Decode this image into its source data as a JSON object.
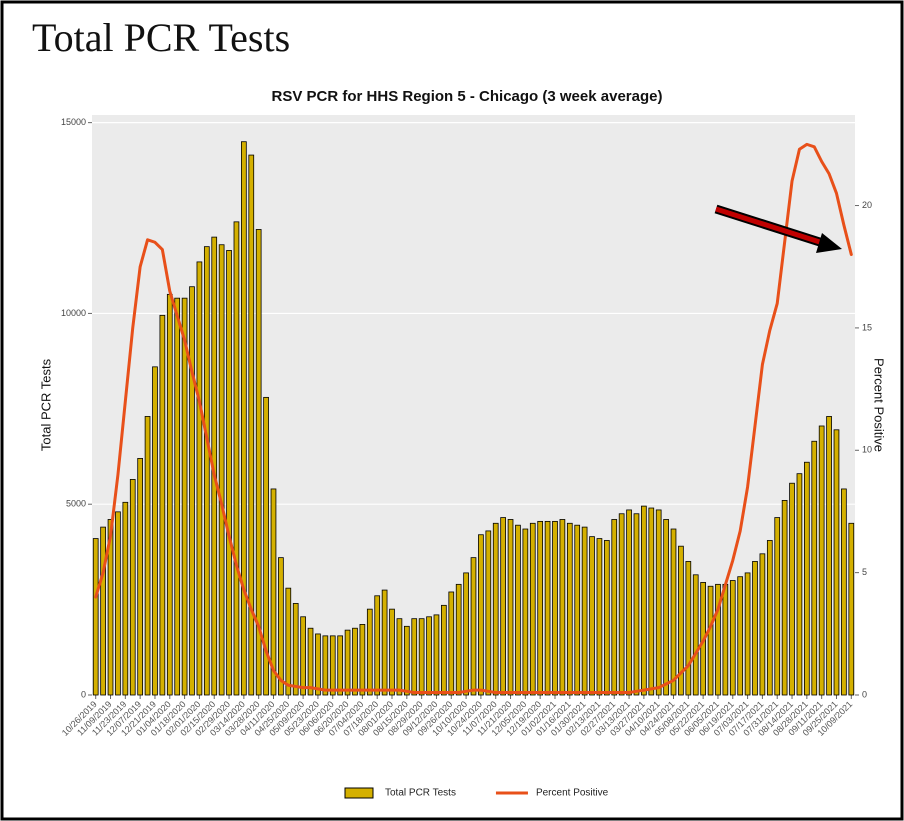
{
  "page_title": "Total PCR Tests",
  "chart_data": {
    "type": "bar_line",
    "title": "RSV PCR for HHS Region 5 - Chicago (3 week average)",
    "y_label": "Total PCR Tests",
    "y2_label": "Percent Positive",
    "categories": [
      "10/26/2019",
      null,
      "11/09/2019",
      null,
      "11/23/2019",
      null,
      "12/07/2019",
      null,
      "12/21/2019",
      null,
      "01/04/2020",
      null,
      "01/18/2020",
      null,
      "02/01/2020",
      null,
      "02/15/2020",
      null,
      "02/29/2020",
      null,
      "03/14/2020",
      null,
      "03/28/2020",
      null,
      "04/11/2020",
      null,
      "04/25/2020",
      null,
      "05/09/2020",
      null,
      "05/23/2020",
      null,
      "06/06/2020",
      null,
      "06/20/2020",
      null,
      "07/04/2020",
      null,
      "07/18/2020",
      null,
      "08/01/2020",
      null,
      "08/15/2020",
      null,
      "08/29/2020",
      null,
      "09/12/2020",
      null,
      "09/26/2020",
      null,
      "10/10/2020",
      null,
      "10/24/2020",
      null,
      "11/07/2020",
      null,
      "11/21/2020",
      null,
      "12/05/2020",
      null,
      "12/19/2020",
      null,
      "01/02/2021",
      null,
      "01/16/2021",
      null,
      "01/30/2021",
      null,
      "02/13/2021",
      null,
      "02/27/2021",
      null,
      "03/13/2021",
      null,
      "03/27/2021",
      null,
      "04/10/2021",
      null,
      "04/24/2021",
      null,
      "05/08/2021",
      null,
      "05/22/2021",
      null,
      "06/05/2021",
      null,
      "06/19/2021",
      null,
      "07/03/2021",
      null,
      "07/17/2021",
      null,
      "07/31/2021",
      null,
      "08/14/2021",
      null,
      "08/28/2021",
      null,
      "09/11/2021",
      null,
      "09/25/2021",
      null,
      "10/09/2021"
    ],
    "series": [
      {
        "name": "Total PCR Tests",
        "type": "bar",
        "color": "#d4b000",
        "values": [
          4100,
          4400,
          4600,
          4800,
          5050,
          5650,
          6200,
          7300,
          8600,
          9950,
          10500,
          10400,
          10400,
          10700,
          11350,
          11750,
          12000,
          11800,
          11650,
          12400,
          14500,
          14150,
          12200,
          7800,
          5400,
          3600,
          2800,
          2400,
          2050,
          1750,
          1600,
          1550,
          1550,
          1550,
          1700,
          1750,
          1850,
          2250,
          2600,
          2750,
          2250,
          2000,
          1800,
          2000,
          2000,
          2050,
          2100,
          2350,
          2700,
          2900,
          3200,
          3600,
          4200,
          4300,
          4500,
          4650,
          4600,
          4450,
          4350,
          4500,
          4550,
          4550,
          4550,
          4600,
          4500,
          4450,
          4400,
          4150,
          4100,
          4050,
          4600,
          4750,
          4850,
          4750,
          4950,
          4900,
          4850,
          4600,
          4350,
          3900,
          3500,
          3150,
          2950,
          2850,
          2900,
          2900,
          3000,
          3100,
          3200,
          3500,
          3700,
          4050,
          4650,
          5100,
          5550,
          5800,
          6100,
          6650,
          7050,
          7300,
          6950,
          5400,
          4500
        ]
      },
      {
        "name": "Percent Positive",
        "type": "line",
        "axis": "y2",
        "color": "#e8501a",
        "values": [
          4.0,
          5.0,
          6.5,
          9.0,
          12.0,
          15.0,
          17.5,
          18.6,
          18.5,
          18.2,
          16.5,
          15.5,
          14.5,
          13.2,
          12.0,
          10.5,
          9.0,
          7.8,
          6.5,
          5.3,
          4.3,
          3.5,
          2.8,
          1.8,
          1.0,
          0.6,
          0.4,
          0.35,
          0.3,
          0.3,
          0.25,
          0.2,
          0.2,
          0.2,
          0.2,
          0.2,
          0.2,
          0.2,
          0.2,
          0.2,
          0.2,
          0.2,
          0.15,
          0.1,
          0.1,
          0.1,
          0.1,
          0.1,
          0.1,
          0.1,
          0.15,
          0.2,
          0.2,
          0.15,
          0.1,
          0.1,
          0.1,
          0.1,
          0.1,
          0.1,
          0.1,
          0.1,
          0.1,
          0.1,
          0.1,
          0.1,
          0.1,
          0.1,
          0.1,
          0.1,
          0.1,
          0.1,
          0.1,
          0.15,
          0.2,
          0.25,
          0.3,
          0.45,
          0.6,
          0.9,
          1.2,
          1.7,
          2.2,
          2.8,
          3.5,
          4.5,
          5.5,
          6.7,
          8.5,
          11.0,
          13.5,
          14.9,
          16.0,
          18.5,
          21.0,
          22.3,
          22.5,
          22.4,
          21.8,
          21.3,
          20.5,
          19.2,
          18.0
        ]
      }
    ],
    "ylim": [
      0,
      15200
    ],
    "yticks": [
      0,
      5000,
      10000,
      15000
    ],
    "y2lim": [
      0,
      23.7
    ],
    "y2ticks": [
      0,
      5,
      10,
      15,
      20
    ],
    "grid": true,
    "legend": "bottom"
  }
}
